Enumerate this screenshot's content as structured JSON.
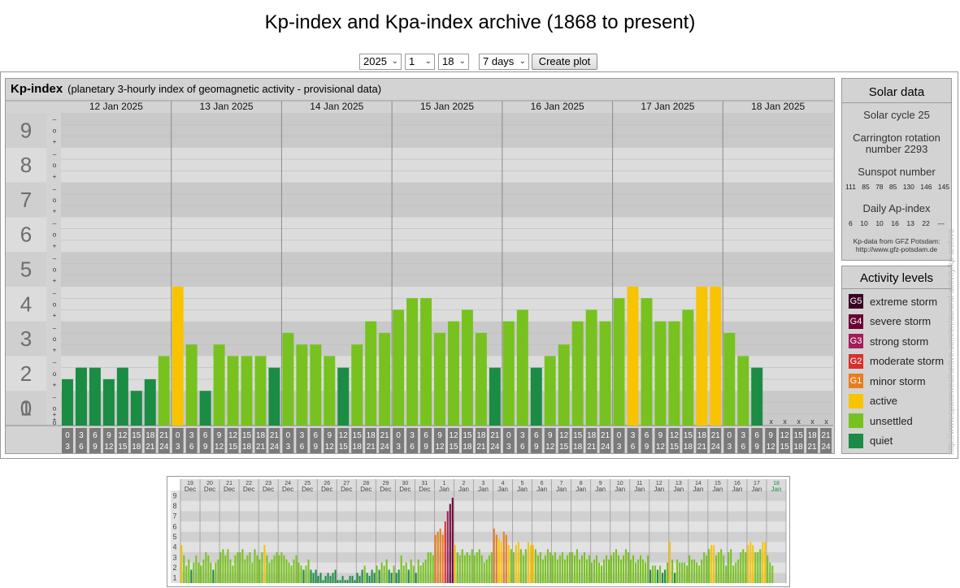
{
  "title": "Kp-index and Kpa-index archive (1868 to present)",
  "controls": {
    "year": "2025",
    "month": "1",
    "day": "18",
    "range": "7 days",
    "button": "Create plot"
  },
  "kp_panel": {
    "label": "Kp-index",
    "subtitle": "(planetary 3-hourly index of geomagnetic activity - provisional data)"
  },
  "colors": {
    "quiet": "#1a8c44",
    "unsettled": "#77c21e",
    "active": "#f8c300",
    "g1": "#e97d1e",
    "g2": "#d6302a",
    "g3": "#a21d5a",
    "g4": "#6b0033",
    "g5": "#3a0026"
  },
  "chart_data": [
    {
      "type": "bar",
      "ylim": [
        0,
        9
      ],
      "yticks": [
        "0",
        "1",
        "2",
        "3",
        "4",
        "5",
        "6",
        "7",
        "8",
        "9"
      ],
      "ysubticks": [
        "+",
        "o",
        "–"
      ],
      "days": [
        "12 Jan 2025",
        "13 Jan 2025",
        "14 Jan 2025",
        "15 Jan 2025",
        "16 Jan 2025",
        "17 Jan 2025",
        "18 Jan 2025"
      ],
      "interval_start": [
        "0",
        "3",
        "6",
        "9",
        "12",
        "15",
        "18",
        "21"
      ],
      "interval_end": [
        "3",
        "6",
        "9",
        "12",
        "15",
        "18",
        "21",
        "24"
      ],
      "missing_marker": "x",
      "values": [
        [
          1.333,
          1.667,
          1.667,
          1.333,
          1.667,
          1.0,
          1.333,
          2.0
        ],
        [
          4.0,
          2.333,
          1.0,
          2.333,
          2.0,
          2.0,
          2.0,
          1.667
        ],
        [
          2.667,
          2.333,
          2.333,
          2.0,
          1.667,
          2.333,
          3.0,
          2.667
        ],
        [
          3.333,
          3.667,
          3.667,
          2.667,
          3.0,
          3.333,
          2.667,
          1.667
        ],
        [
          3.0,
          3.333,
          1.667,
          2.0,
          2.333,
          3.0,
          3.333,
          3.0
        ],
        [
          3.667,
          4.0,
          3.667,
          3.0,
          3.0,
          3.333,
          4.0,
          4.0
        ],
        [
          2.667,
          2.0,
          1.667,
          null,
          null,
          null,
          null,
          null
        ]
      ]
    },
    {
      "type": "bar",
      "ylim": [
        0,
        9
      ],
      "yticks": [
        "1",
        "2",
        "3",
        "4",
        "5",
        "6",
        "7",
        "8",
        "9"
      ],
      "days": [
        {
          "d": "19",
          "m": "Dec"
        },
        {
          "d": "20",
          "m": "Dec"
        },
        {
          "d": "21",
          "m": "Dec"
        },
        {
          "d": "22",
          "m": "Dec"
        },
        {
          "d": "23",
          "m": "Dec"
        },
        {
          "d": "24",
          "m": "Dec"
        },
        {
          "d": "25",
          "m": "Dec"
        },
        {
          "d": "26",
          "m": "Dec"
        },
        {
          "d": "27",
          "m": "Dec"
        },
        {
          "d": "28",
          "m": "Dec"
        },
        {
          "d": "29",
          "m": "Dec"
        },
        {
          "d": "30",
          "m": "Dec"
        },
        {
          "d": "31",
          "m": "Dec"
        },
        {
          "d": "1",
          "m": "Jan"
        },
        {
          "d": "2",
          "m": "Jan"
        },
        {
          "d": "3",
          "m": "Jan"
        },
        {
          "d": "4",
          "m": "Jan"
        },
        {
          "d": "5",
          "m": "Jan"
        },
        {
          "d": "6",
          "m": "Jan"
        },
        {
          "d": "7",
          "m": "Jan"
        },
        {
          "d": "8",
          "m": "Jan"
        },
        {
          "d": "9",
          "m": "Jan"
        },
        {
          "d": "10",
          "m": "Jan"
        },
        {
          "d": "11",
          "m": "Jan"
        },
        {
          "d": "12",
          "m": "Jan"
        },
        {
          "d": "13",
          "m": "Jan"
        },
        {
          "d": "14",
          "m": "Jan"
        },
        {
          "d": "15",
          "m": "Jan"
        },
        {
          "d": "16",
          "m": "Jan"
        },
        {
          "d": "17",
          "m": "Jan"
        },
        {
          "d": "18",
          "m": "Jan"
        }
      ],
      "values": [
        [
          3.7,
          2.7,
          1.7,
          2.3,
          1.3,
          2.0,
          2.7,
          2.0
        ],
        [
          1.7,
          2.3,
          3.0,
          2.7,
          2.0,
          1.3,
          2.0,
          2.3
        ],
        [
          3.0,
          3.3,
          2.7,
          3.3,
          2.3,
          1.7,
          2.7,
          3.0
        ],
        [
          3.0,
          3.3,
          2.3,
          2.7,
          3.0,
          2.0,
          3.3,
          2.7
        ],
        [
          2.3,
          3.0,
          3.7,
          2.7,
          2.0,
          2.3,
          2.7,
          3.0
        ],
        [
          2.7,
          3.0,
          2.7,
          2.3,
          2.0,
          1.7,
          2.3,
          2.7
        ],
        [
          2.0,
          1.7,
          1.3,
          1.7,
          2.3,
          1.3,
          1.0,
          1.3
        ],
        [
          0.7,
          1.0,
          0.3,
          0.7,
          1.0,
          0.7,
          1.0,
          1.3
        ],
        [
          0.3,
          0.3,
          0.7,
          0.3,
          0.3,
          0.7,
          0.7,
          0.3
        ],
        [
          1.0,
          0.7,
          1.3,
          1.7,
          1.0,
          0.7,
          1.3,
          1.0
        ],
        [
          1.7,
          1.3,
          2.0,
          1.7,
          2.3,
          1.3,
          1.0,
          1.7
        ],
        [
          1.0,
          1.3,
          2.7,
          1.7,
          2.0,
          1.3,
          2.3,
          1.7
        ],
        [
          1.0,
          2.3,
          1.7,
          2.0,
          2.3,
          3.0,
          3.0,
          2.7
        ],
        [
          4.7,
          5.0,
          5.3,
          4.7,
          6.0,
          7.0,
          7.7,
          8.3
        ],
        [
          3.7,
          3.0,
          2.7,
          3.3,
          2.7,
          3.0,
          2.7,
          3.3
        ],
        [
          2.7,
          3.0,
          3.3,
          2.7,
          2.0,
          2.3,
          2.7,
          3.0
        ],
        [
          5.3,
          4.7,
          4.3,
          4.0,
          5.0,
          4.7,
          3.7,
          3.3
        ],
        [
          3.0,
          3.7,
          4.0,
          3.3,
          2.7,
          3.3,
          4.0,
          3.7
        ],
        [
          3.7,
          3.3,
          2.7,
          3.0,
          2.3,
          2.7,
          3.3,
          3.0
        ],
        [
          2.7,
          3.0,
          2.3,
          2.7,
          3.0,
          2.3,
          2.7,
          3.0
        ],
        [
          3.0,
          2.7,
          3.3,
          2.3,
          2.7,
          3.0,
          2.3,
          2.7
        ],
        [
          2.0,
          2.3,
          2.7,
          2.0,
          1.7,
          2.3,
          2.7,
          2.3
        ],
        [
          2.7,
          3.0,
          3.3,
          2.7,
          2.3,
          2.7,
          3.3,
          3.0
        ],
        [
          2.3,
          2.7,
          2.0,
          2.3,
          2.7,
          2.3,
          2.0,
          2.7
        ],
        [
          1.3,
          1.7,
          1.7,
          1.3,
          1.7,
          1.0,
          1.3,
          2.0
        ],
        [
          4.0,
          2.3,
          1.0,
          2.3,
          2.0,
          2.0,
          2.0,
          1.7
        ],
        [
          2.7,
          2.3,
          2.3,
          2.0,
          1.7,
          2.3,
          3.0,
          2.7
        ],
        [
          3.3,
          3.7,
          3.7,
          2.7,
          3.0,
          3.3,
          2.7,
          1.7
        ],
        [
          3.0,
          3.3,
          1.7,
          2.0,
          2.3,
          3.0,
          3.3,
          3.0
        ],
        [
          3.7,
          4.0,
          3.7,
          3.0,
          3.0,
          3.3,
          4.0,
          4.0
        ],
        [
          2.7,
          2.0,
          1.7,
          null,
          null,
          null,
          null,
          null
        ]
      ]
    }
  ],
  "solar_data": {
    "title": "Solar data",
    "cycle": "Solar cycle 25",
    "carrington_line1": "Carrington rotation",
    "carrington_line2": "number 2293",
    "sunspot_label": "Sunspot number",
    "sunspot_values": [
      "111",
      "85",
      "78",
      "85",
      "130",
      "146",
      "145"
    ],
    "ap_label": "Daily Ap-index",
    "ap_values": [
      "6",
      "10",
      "10",
      "16",
      "13",
      "22",
      "---"
    ],
    "source_line1": "Kp-data from GFZ Potsdam:",
    "source_line2": "http://www.gfz-potsdam.de"
  },
  "activity_levels": {
    "title": "Activity levels",
    "items": [
      {
        "badge": "G5",
        "label": "extreme storm",
        "color": "#3a0026"
      },
      {
        "badge": "G4",
        "label": "severe storm",
        "color": "#6b0033"
      },
      {
        "badge": "G3",
        "label": "strong storm",
        "color": "#a21d5a"
      },
      {
        "badge": "G2",
        "label": "moderate storm",
        "color": "#d6302a"
      },
      {
        "badge": "G1",
        "label": "minor storm",
        "color": "#e97d1e"
      },
      {
        "badge": "",
        "label": "active",
        "color": "#f8c300"
      },
      {
        "badge": "",
        "label": "unsettled",
        "color": "#77c21e"
      },
      {
        "badge": "",
        "label": "quiet",
        "color": "#1a8c44"
      }
    ]
  },
  "watermark": "http://www.spaceweatherlive.com/en/auroral-activity/kp-archive"
}
